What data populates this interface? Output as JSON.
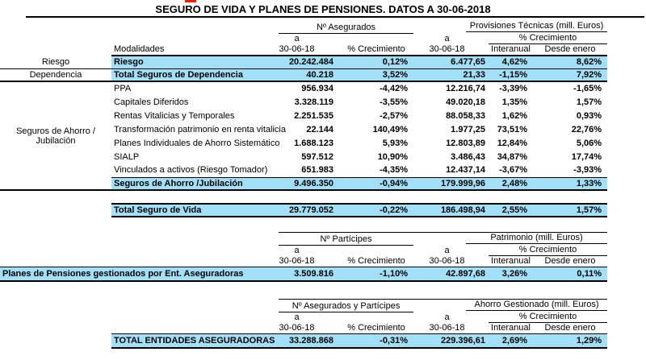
{
  "title": "SEGURO DE VIDA Y PLANES DE PENSIONES. DATOS A 30-06-2018",
  "accent_color": "#A2E0F7",
  "table1": {
    "header": {
      "group1": "Nº Asegurados",
      "group2": "Provisiones Técnicas (mill. Euros)",
      "a": "a",
      "date": "30-06-18",
      "pct": "% Crecimiento",
      "growth": "% Crecimiento",
      "interanual": "Interanual",
      "desde": "Desde enero",
      "modalidades": "Modalidades"
    },
    "rows": [
      {
        "style": "hl-first",
        "group": {
          "label": "Riesgo",
          "line": "thin",
          "span": 1
        },
        "label": "Riesgo",
        "values": [
          "20.242.484",
          "0,12%",
          "6.477,65",
          "4,62%",
          "8,62%"
        ]
      },
      {
        "style": "hl-thick",
        "group": {
          "label": "Dependencia",
          "line": "thick",
          "span": 1
        },
        "label": "Total Seguros de Dependencia",
        "values": [
          "40.218",
          "3,52%",
          "21,33",
          "-1,15%",
          "7,92%"
        ]
      },
      {
        "style": "plain",
        "group": {
          "label": "Seguros de Ahorro /\nJubilación",
          "line": "thick",
          "span": 8
        },
        "label": "PPA",
        "values": [
          "956.934",
          "-4,42%",
          "12.216,74",
          "-3,39%",
          "-1,65%"
        ]
      },
      {
        "style": "plain",
        "label": "Capitales Diferidos",
        "values": [
          "3.328.119",
          "-3,55%",
          "49.020,18",
          "1,35%",
          "1,57%"
        ]
      },
      {
        "style": "plain",
        "label": "Rentas Vitalicias y Temporales",
        "values": [
          "2.251.535",
          "-2,57%",
          "88.058,33",
          "1,62%",
          "0,93%"
        ]
      },
      {
        "style": "plain",
        "label": "Transformación patrimonio en renta vitalicia",
        "values": [
          "22.144",
          "140,49%",
          "1.977,25",
          "73,51%",
          "22,76%"
        ]
      },
      {
        "style": "plain",
        "label": "Planes Individuales de Ahorro Sistemático",
        "values": [
          "1.688.123",
          "5,93%",
          "12.803,89",
          "12,84%",
          "5,06%"
        ]
      },
      {
        "style": "plain",
        "label": "SIALP",
        "values": [
          "597.512",
          "10,90%",
          "3.486,43",
          "34,87%",
          "17,74%"
        ]
      },
      {
        "style": "plain",
        "label": "Vinculados a activos (Riesgo Tomador)",
        "values": [
          "651.983",
          "-4,35%",
          "12.437,14",
          "-3,67%",
          "-3,93%"
        ]
      },
      {
        "style": "subtotal",
        "label": "Seguros de Ahorro /Jubilación",
        "values": [
          "9.496.350",
          "-0,94%",
          "179.999,96",
          "2,48%",
          "1,33%"
        ]
      },
      {
        "style": "spacer",
        "group": {
          "label": "",
          "line": "none",
          "span": 1
        },
        "label": "",
        "values": [
          "",
          "",
          "",
          "",
          ""
        ]
      },
      {
        "style": "total",
        "group": {
          "label": "",
          "line": "none",
          "span": 1
        },
        "label": "Total Seguro de Vida",
        "values": [
          "29.779.052",
          "-0,22%",
          "186.498,94",
          "2,55%",
          "1,57%"
        ]
      }
    ]
  },
  "table2": {
    "header": {
      "group1": "Nº Partícipes",
      "group2": "Patrimonio (mill. Euros)",
      "a": "a",
      "date": "30-06-18",
      "pct": "% Crecimiento",
      "growth": "% Crecimiento",
      "interanual": "Interanual",
      "desde": "Desde enero"
    },
    "row": {
      "label": "Planes de Pensiones gestionados por Ent. Aseguradoras",
      "values": [
        "3.509.816",
        "-1,10%",
        "42.897,68",
        "3,26%",
        "0,11%"
      ]
    }
  },
  "table3": {
    "header": {
      "group1": "Nº Asegurados y Partícipes",
      "group2": "Ahorro Gestionado (mill. Euros)",
      "a": "a",
      "date": "30-06-18",
      "pct": "% Crecimiento",
      "growth": "% Crecimiento",
      "interanual": "Interanual",
      "desde": "Desde enero"
    },
    "row": {
      "label": "TOTAL ENTIDADES ASEGURADORAS",
      "values": [
        "33.288.868",
        "-0,31%",
        "229.396,61",
        "2,69%",
        "1,29%"
      ]
    }
  }
}
